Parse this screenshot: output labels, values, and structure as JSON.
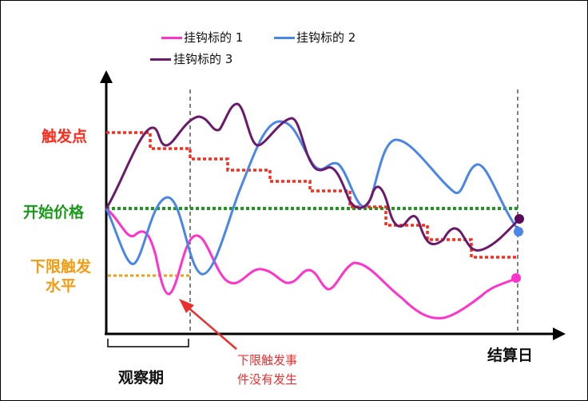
{
  "legend": [
    {
      "label": "挂钩标的 1",
      "color": "#ff33cc"
    },
    {
      "label": "挂钩标的 2",
      "color": "#4a86e8"
    },
    {
      "label": "挂钩标的 3",
      "color": "#6b1a6b"
    }
  ],
  "labels": {
    "trigger_point": "触发点",
    "initial_price": "开始价格",
    "lower_trigger_line1": "下限触发",
    "lower_trigger_line2": "水平",
    "observation_period": "观察期",
    "settlement_date": "结算日",
    "annotation_line1": "下限触发事",
    "annotation_line2": "件没有发生"
  },
  "colors": {
    "trigger": "#ff2a1a",
    "initial": "#1a9a1a",
    "lower": "#f39c12",
    "annotation": "#e83030",
    "axis": "#000000"
  }
}
